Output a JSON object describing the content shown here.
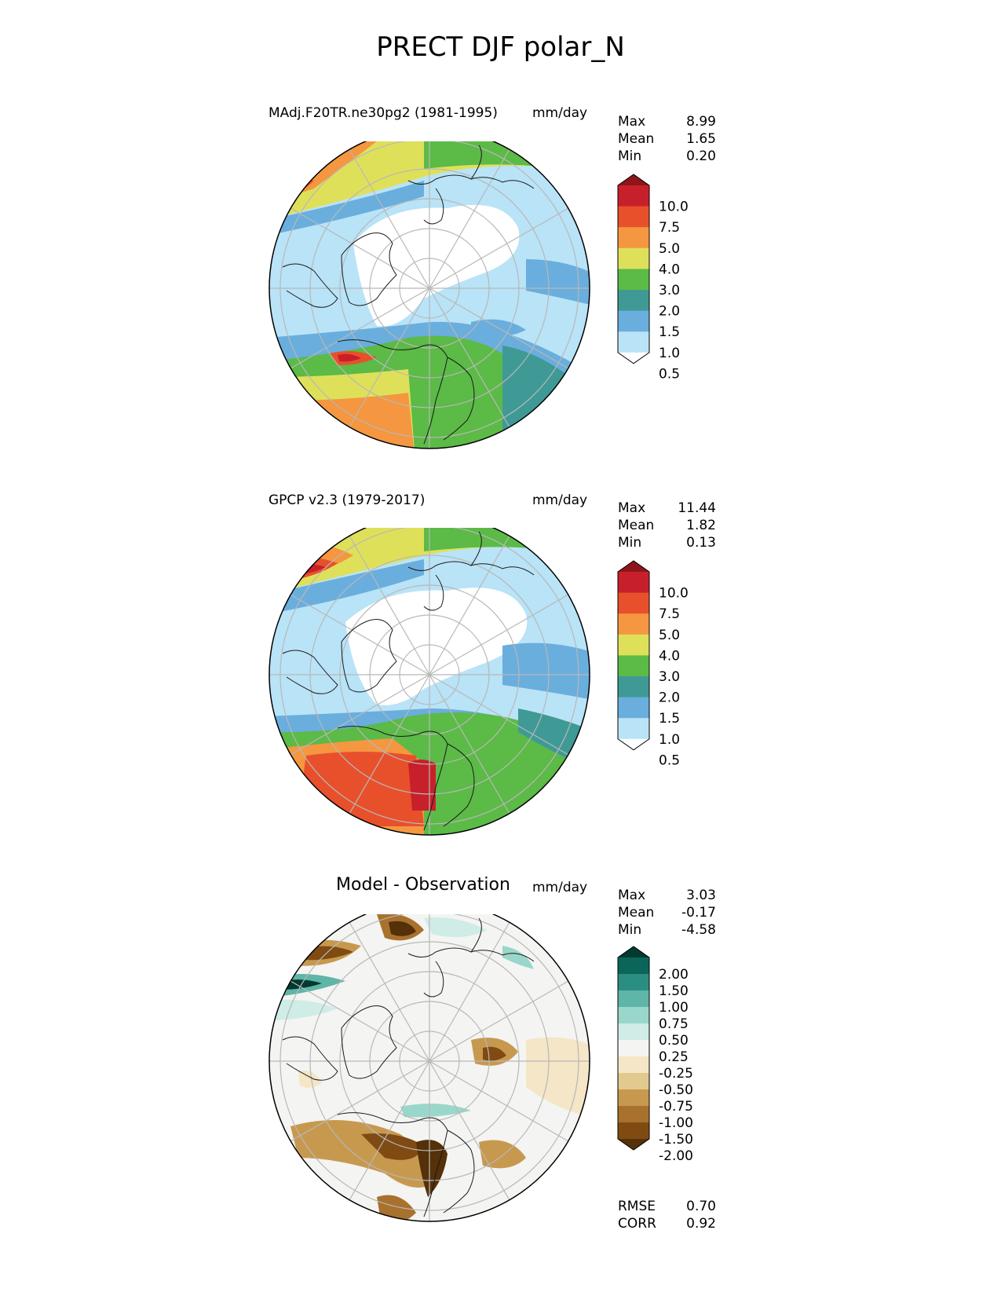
{
  "figure": {
    "title": "PRECT DJF polar_N"
  },
  "panels": [
    {
      "id": "model",
      "left_title": "MAdj.F20TR.ne30pg2 (1981-1995)",
      "units": "mm/day",
      "stats": {
        "max_label": "Max",
        "max": "8.99",
        "mean_label": "Mean",
        "mean": "1.65",
        "min_label": "Min",
        "min": "0.20"
      },
      "colorbar": {
        "type": "sequential",
        "tick_labels": [
          "10.0",
          "7.5",
          "5.0",
          "4.0",
          "3.0",
          "2.0",
          "1.5",
          "1.0",
          "0.5"
        ],
        "colors_top_to_bottom": [
          "#8e1519",
          "#c8202a",
          "#e8502c",
          "#f49740",
          "#dfe05a",
          "#5cba47",
          "#3f9a96",
          "#6aaedd",
          "#b9e3f7",
          "#ffffff"
        ]
      }
    },
    {
      "id": "obs",
      "left_title": "GPCP v2.3 (1979-2017)",
      "units": "mm/day",
      "stats": {
        "max_label": "Max",
        "max": "11.44",
        "mean_label": "Mean",
        "mean": "1.82",
        "min_label": "Min",
        "min": "0.13"
      },
      "colorbar": {
        "type": "sequential",
        "tick_labels": [
          "10.0",
          "7.5",
          "5.0",
          "4.0",
          "3.0",
          "2.0",
          "1.5",
          "1.0",
          "0.5"
        ],
        "colors_top_to_bottom": [
          "#8e1519",
          "#c8202a",
          "#e8502c",
          "#f49740",
          "#dfe05a",
          "#5cba47",
          "#3f9a96",
          "#6aaedd",
          "#b9e3f7",
          "#ffffff"
        ]
      }
    },
    {
      "id": "diff",
      "center_title": "Model - Observation",
      "units": "mm/day",
      "stats": {
        "max_label": "Max",
        "max": "3.03",
        "mean_label": "Mean",
        "mean": "-0.17",
        "min_label": "Min",
        "min": "-4.58"
      },
      "colorbar": {
        "type": "diverging",
        "tick_labels": [
          "2.00",
          "1.50",
          "1.00",
          "0.75",
          "0.50",
          "0.25",
          "-0.25",
          "-0.50",
          "-0.75",
          "-1.00",
          "-1.50",
          "-2.00"
        ],
        "colors_top_to_bottom": [
          "#033a30",
          "#0b6659",
          "#2b8e82",
          "#5fb5a8",
          "#9ad7cb",
          "#cfece6",
          "#f4f4f2",
          "#f4e6c6",
          "#e2c98f",
          "#c7994f",
          "#a8712e",
          "#7f4b13",
          "#553008"
        ]
      },
      "metrics": {
        "rmse_label": "RMSE",
        "rmse": "0.70",
        "corr_label": "CORR",
        "corr": "0.92"
      }
    }
  ],
  "map_colors": {
    "coast": "#1a1a1a",
    "grid": "#b8b8b8",
    "rim": "#000000"
  }
}
